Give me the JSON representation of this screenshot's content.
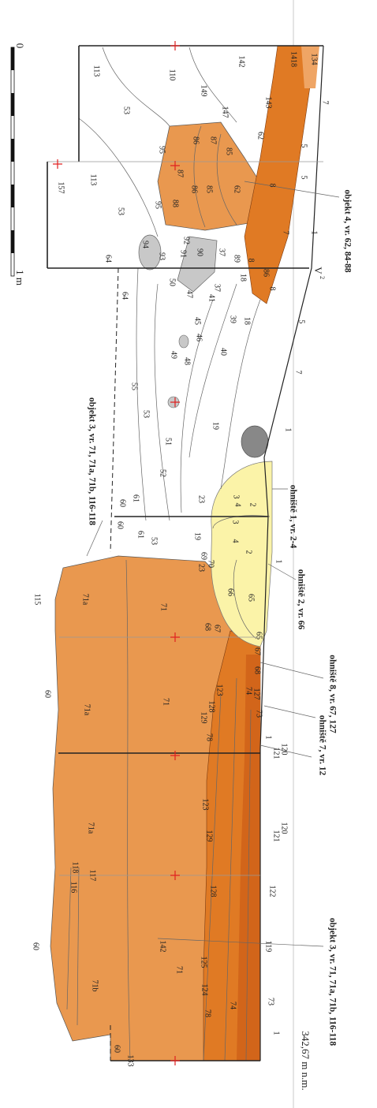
{
  "annotations": [
    "objekt 4, vr. 62, 84-88",
    "objekt 3, vr. 71, 71a, 71b, 116-118",
    "ohniště 1, vr. 2-4",
    "ohniště 2, vr. 66",
    "ohniště 8, vr. 67, 127",
    "ohniště 7, vr. 12",
    "objekt 3, vr. 71, 71a, 71b, 116-118"
  ],
  "scale": {
    "zero": "0",
    "one": "1 m"
  },
  "elevation": "342,67 m n.m.",
  "section": {
    "letter": "V",
    "index": "2"
  },
  "layers": [
    "134",
    "1418",
    "142",
    "110",
    "113",
    "7",
    "149",
    "143",
    "147",
    "53",
    "62",
    "86",
    "87",
    "85",
    "5",
    "95",
    "113",
    "157",
    "53",
    "87",
    "86",
    "62",
    "85",
    "8",
    "5",
    "88",
    "95",
    "7",
    "1",
    "92",
    "91",
    "90",
    "37",
    "89",
    "18",
    "8",
    "86",
    "8",
    "94",
    "93",
    "64",
    "64",
    "50",
    "47",
    "37",
    "41",
    "39",
    "18",
    "45",
    "46",
    "40",
    "5",
    "7",
    "49",
    "48",
    "55",
    "53",
    "19",
    "51",
    "1",
    "52",
    "23",
    "2",
    "3",
    "4",
    "60",
    "61",
    "60",
    "61",
    "53",
    "19",
    "23",
    "2",
    "3",
    "4",
    "69",
    "70",
    "1",
    "66",
    "65",
    "115",
    "71a",
    "71",
    "68",
    "67",
    "65",
    "67",
    "68",
    "74",
    "127",
    "73",
    "123",
    "128",
    "129",
    "78",
    "1",
    "120",
    "121",
    "71a",
    "71",
    "60",
    "123",
    "129",
    "120",
    "121",
    "71a",
    "118",
    "117",
    "116",
    "128",
    "122",
    "60",
    "119",
    "142",
    "125",
    "71",
    "124",
    "71b",
    "73",
    "74",
    "78",
    "1",
    "60",
    "133"
  ]
}
